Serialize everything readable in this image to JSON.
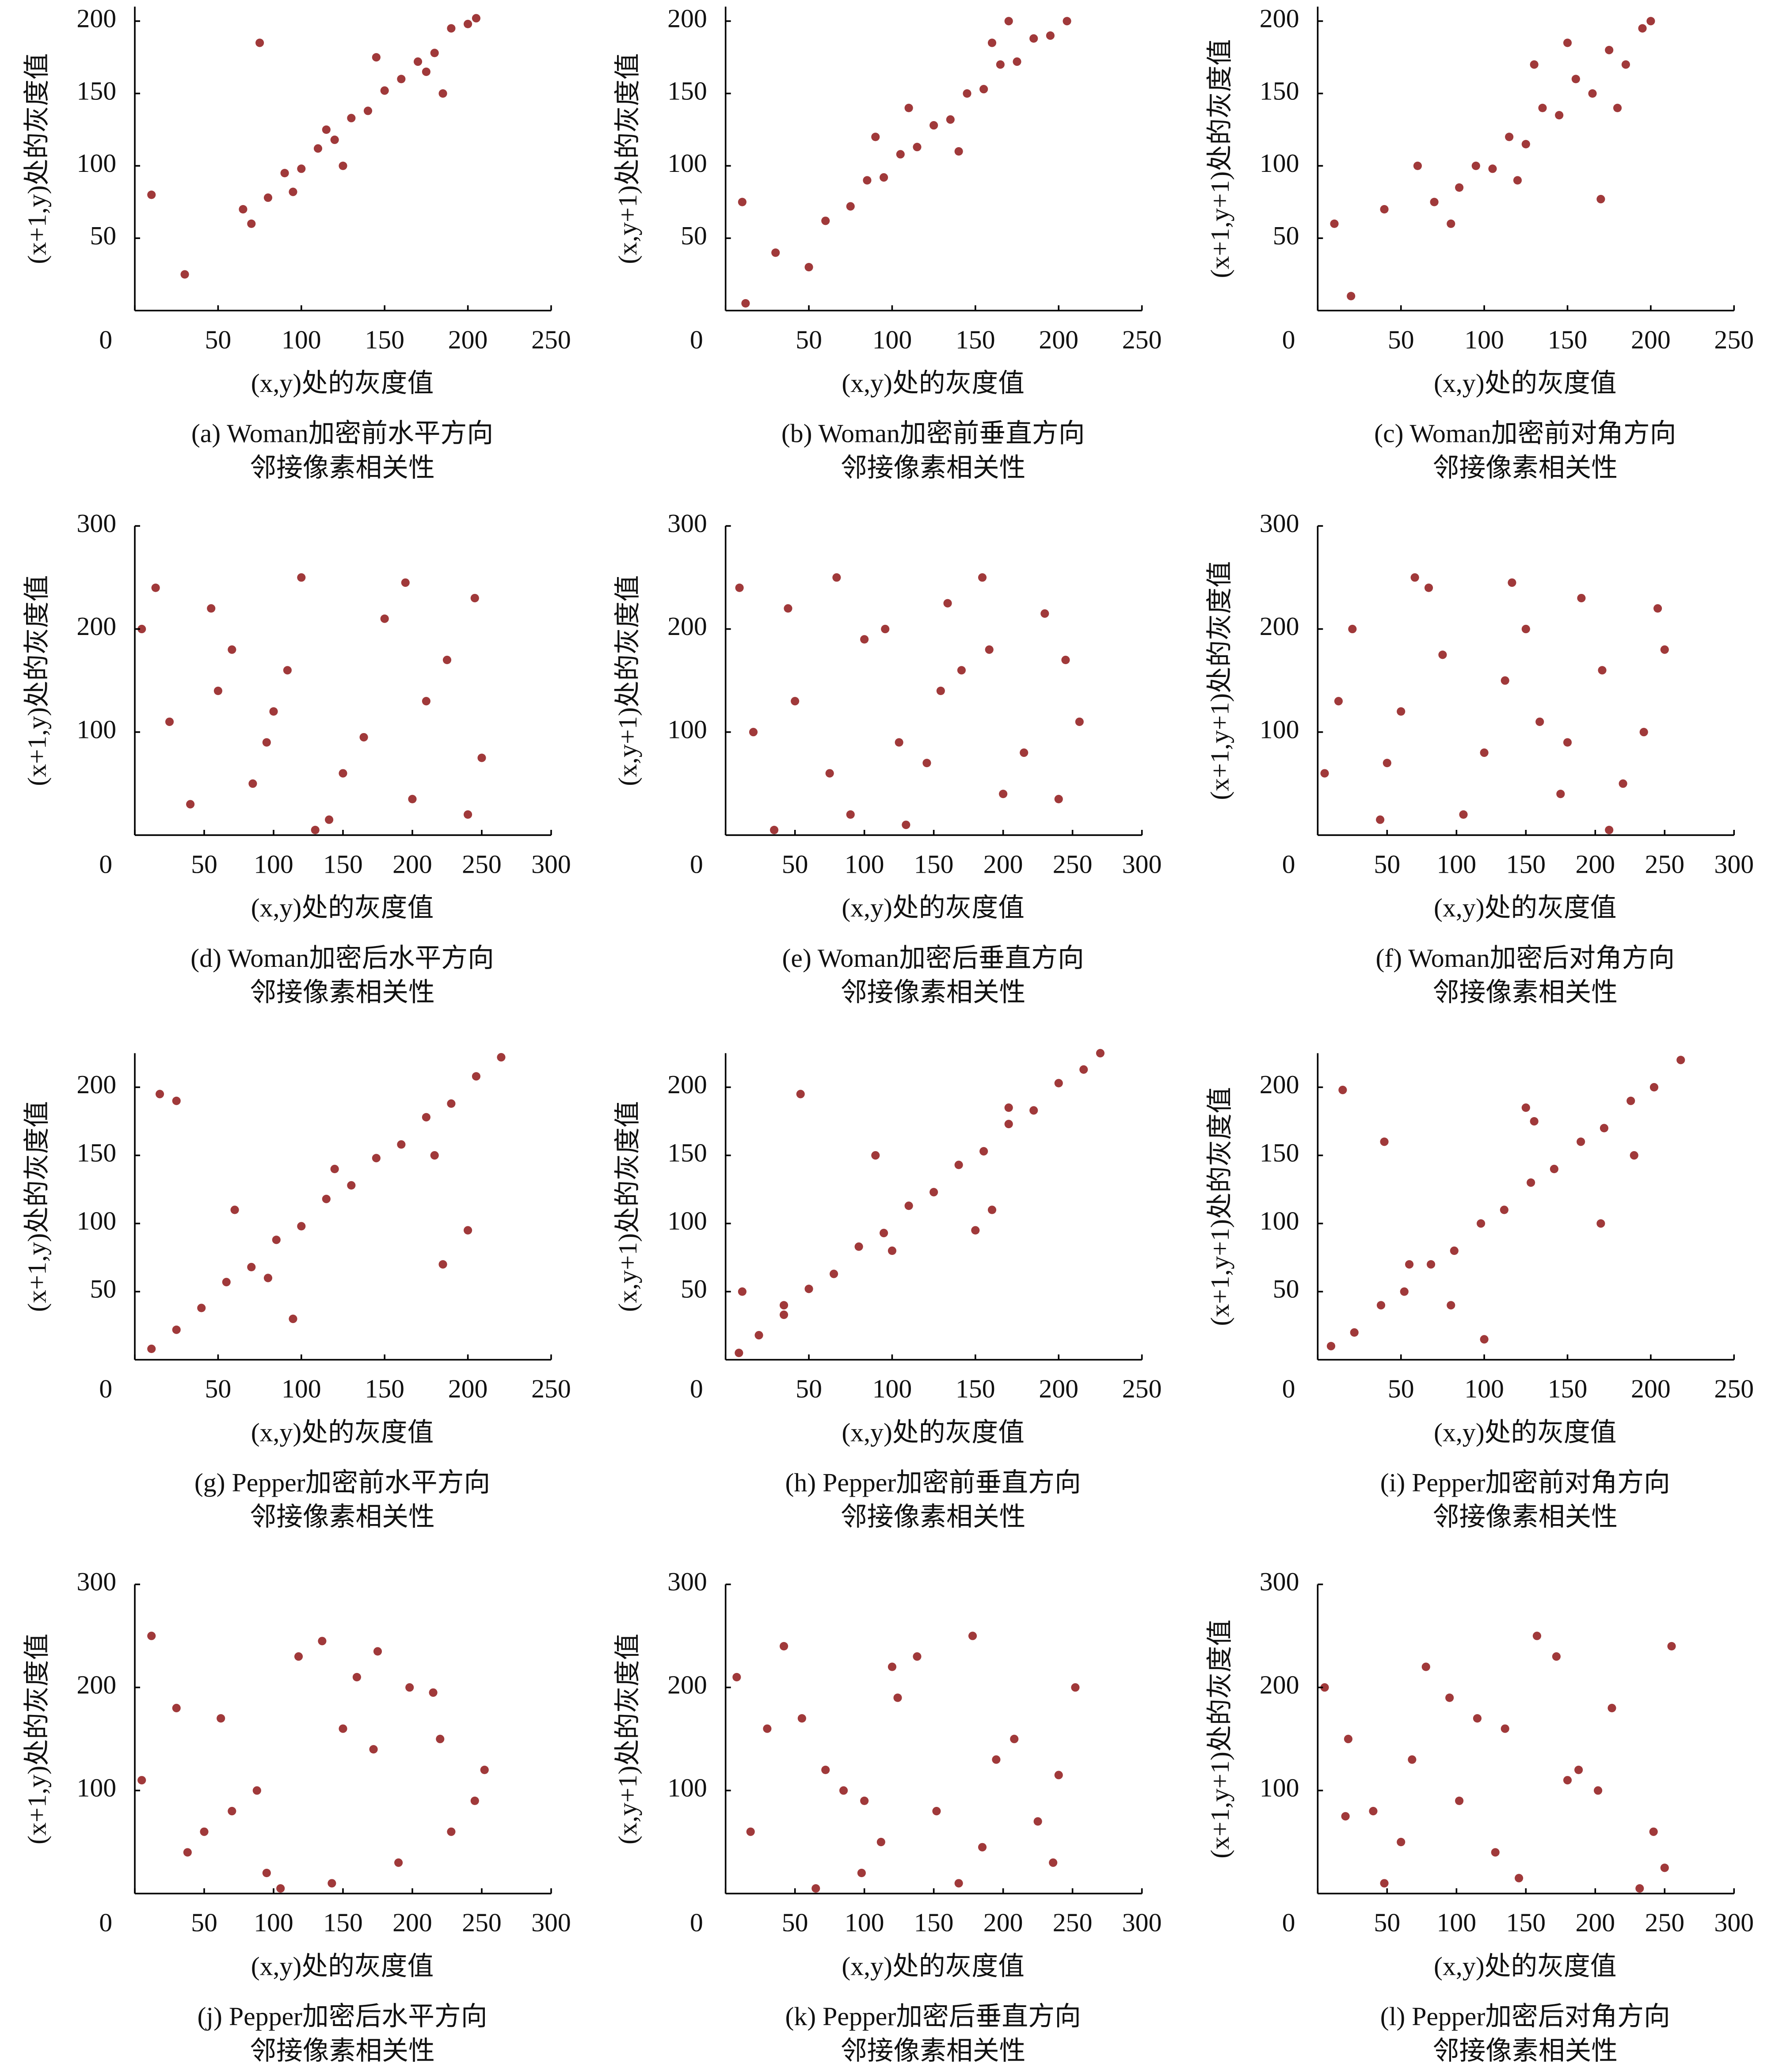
{
  "chart_data": [
    {
      "type": "scatter",
      "xlabel": "(x,y)处的灰度值",
      "ylabel": "(x+1,y)处的灰度值",
      "caption": [
        "(a) Woman加密前水平方向",
        "邻接像素相关性"
      ],
      "color": "#a0393a",
      "xlim": [
        0,
        250
      ],
      "ylim": [
        0,
        210
      ],
      "xticks": [
        0,
        50,
        100,
        150,
        200,
        250
      ],
      "yticks": [
        50,
        100,
        150,
        200
      ],
      "x": [
        65,
        80,
        90,
        100,
        110,
        120,
        130,
        140,
        150,
        160,
        170,
        180,
        190,
        200,
        75,
        95,
        115,
        145,
        175,
        205,
        10,
        30,
        70,
        125,
        185
      ],
      "y": [
        70,
        78,
        95,
        98,
        112,
        118,
        133,
        138,
        152,
        160,
        172,
        178,
        195,
        198,
        185,
        82,
        125,
        175,
        165,
        202,
        80,
        25,
        60,
        100,
        150
      ]
    },
    {
      "type": "scatter",
      "xlabel": "(x,y)处的灰度值",
      "ylabel": "(x,y+1)处的灰度值",
      "caption": [
        "(b) Woman加密前垂直方向",
        "邻接像素相关性"
      ],
      "color": "#a0393a",
      "xlim": [
        0,
        250
      ],
      "ylim": [
        0,
        210
      ],
      "xticks": [
        0,
        50,
        100,
        150,
        200,
        250
      ],
      "yticks": [
        50,
        100,
        150,
        200
      ],
      "x": [
        60,
        75,
        85,
        95,
        105,
        115,
        125,
        135,
        145,
        155,
        165,
        175,
        185,
        195,
        205,
        30,
        50,
        90,
        140,
        170,
        10,
        12,
        110,
        160
      ],
      "y": [
        62,
        72,
        90,
        92,
        108,
        113,
        128,
        132,
        150,
        153,
        170,
        172,
        188,
        190,
        200,
        40,
        30,
        120,
        110,
        200,
        75,
        5,
        140,
        185
      ]
    },
    {
      "type": "scatter",
      "xlabel": "(x,y)处的灰度值",
      "ylabel": "(x+1,y+1)处的灰度值",
      "caption": [
        "(c) Woman加密前对角方向",
        "邻接像素相关性"
      ],
      "color": "#a0393a",
      "xlim": [
        0,
        250
      ],
      "ylim": [
        0,
        210
      ],
      "xticks": [
        0,
        50,
        100,
        150,
        200,
        250
      ],
      "yticks": [
        50,
        100,
        150,
        200
      ],
      "x": [
        70,
        85,
        95,
        105,
        115,
        125,
        135,
        145,
        155,
        165,
        175,
        185,
        195,
        200,
        60,
        80,
        120,
        150,
        180,
        10,
        20,
        40,
        170,
        130
      ],
      "y": [
        75,
        85,
        100,
        98,
        120,
        115,
        140,
        135,
        160,
        150,
        180,
        170,
        195,
        200,
        100,
        60,
        90,
        185,
        140,
        60,
        10,
        70,
        77,
        170
      ]
    },
    {
      "type": "scatter",
      "xlabel": "(x,y)处的灰度值",
      "ylabel": "(x+1,y)处的灰度值",
      "caption": [
        "(d) Woman加密后水平方向",
        "邻接像素相关性"
      ],
      "color": "#a0393a",
      "xlim": [
        0,
        300
      ],
      "ylim": [
        0,
        300
      ],
      "xticks": [
        0,
        50,
        100,
        150,
        200,
        250,
        300
      ],
      "yticks": [
        100,
        200,
        300
      ],
      "x": [
        15,
        40,
        70,
        95,
        120,
        150,
        180,
        210,
        240,
        25,
        55,
        85,
        110,
        140,
        165,
        195,
        225,
        250,
        5,
        60,
        130,
        200,
        245,
        100
      ],
      "y": [
        240,
        30,
        180,
        90,
        250,
        60,
        210,
        130,
        20,
        110,
        220,
        50,
        160,
        15,
        95,
        245,
        170,
        75,
        200,
        140,
        5,
        35,
        230,
        120
      ]
    },
    {
      "type": "scatter",
      "xlabel": "(x,y)处的灰度值",
      "ylabel": "(x,y+1)处的灰度值",
      "caption": [
        "(e) Woman加密后垂直方向",
        "邻接像素相关性"
      ],
      "color": "#a0393a",
      "xlim": [
        0,
        300
      ],
      "ylim": [
        0,
        300
      ],
      "xticks": [
        0,
        50,
        100,
        150,
        200,
        250,
        300
      ],
      "yticks": [
        100,
        200,
        300
      ],
      "x": [
        20,
        45,
        75,
        100,
        130,
        155,
        185,
        215,
        245,
        10,
        50,
        90,
        115,
        145,
        170,
        200,
        230,
        255,
        35,
        80,
        125,
        190,
        240,
        160
      ],
      "y": [
        100,
        220,
        60,
        190,
        10,
        140,
        250,
        80,
        170,
        240,
        130,
        20,
        200,
        70,
        160,
        40,
        215,
        110,
        5,
        250,
        90,
        180,
        35,
        225
      ]
    },
    {
      "type": "scatter",
      "xlabel": "(x,y)处的灰度值",
      "ylabel": "(x+1,y+1)处的灰度值",
      "caption": [
        "(f) Woman加密后对角方向",
        "邻接像素相关性"
      ],
      "color": "#a0393a",
      "xlim": [
        0,
        300
      ],
      "ylim": [
        0,
        300
      ],
      "xticks": [
        0,
        50,
        100,
        150,
        200,
        250,
        300
      ],
      "yticks": [
        100,
        200,
        300
      ],
      "x": [
        25,
        50,
        80,
        105,
        135,
        160,
        190,
        220,
        250,
        15,
        45,
        70,
        120,
        150,
        175,
        205,
        235,
        5,
        90,
        140,
        210,
        245,
        60,
        180
      ],
      "y": [
        200,
        70,
        240,
        20,
        150,
        110,
        230,
        50,
        180,
        130,
        15,
        250,
        80,
        200,
        40,
        160,
        100,
        60,
        175,
        245,
        5,
        220,
        120,
        90
      ]
    },
    {
      "type": "scatter",
      "xlabel": "(x,y)处的灰度值",
      "ylabel": "(x+1,y)处的灰度值",
      "caption": [
        "(g) Pepper加密前水平方向",
        "邻接像素相关性"
      ],
      "color": "#a0393a",
      "xlim": [
        0,
        250
      ],
      "ylim": [
        0,
        225
      ],
      "xticks": [
        0,
        50,
        100,
        150,
        200,
        250
      ],
      "yticks": [
        50,
        100,
        150,
        200
      ],
      "x": [
        10,
        25,
        40,
        55,
        70,
        85,
        100,
        115,
        130,
        145,
        160,
        175,
        190,
        205,
        220,
        15,
        25,
        60,
        95,
        185,
        200,
        120,
        80,
        180
      ],
      "y": [
        8,
        22,
        38,
        57,
        68,
        88,
        98,
        118,
        128,
        148,
        158,
        178,
        188,
        208,
        222,
        195,
        190,
        110,
        30,
        70,
        95,
        140,
        60,
        150
      ]
    },
    {
      "type": "scatter",
      "xlabel": "(x,y)处的灰度值",
      "ylabel": "(x,y+1)处的灰度值",
      "caption": [
        "(h) Pepper加密前垂直方向",
        "邻接像素相关性"
      ],
      "color": "#a0393a",
      "xlim": [
        0,
        250
      ],
      "ylim": [
        0,
        225
      ],
      "xticks": [
        0,
        50,
        100,
        150,
        200,
        250
      ],
      "yticks": [
        50,
        100,
        150,
        200
      ],
      "x": [
        8,
        20,
        35,
        50,
        65,
        80,
        95,
        110,
        125,
        140,
        155,
        170,
        185,
        200,
        215,
        225,
        45,
        90,
        150,
        10,
        170,
        35,
        100,
        160
      ],
      "y": [
        5,
        18,
        33,
        52,
        63,
        83,
        93,
        113,
        123,
        143,
        153,
        173,
        183,
        203,
        213,
        225,
        195,
        150,
        95,
        50,
        185,
        40,
        80,
        110
      ]
    },
    {
      "type": "scatter",
      "xlabel": "(x,y)处的灰度值",
      "ylabel": "(x+1,y+1)处的灰度值",
      "caption": [
        "(i) Pepper加密前对角方向",
        "邻接像素相关性"
      ],
      "color": "#a0393a",
      "xlim": [
        0,
        250
      ],
      "ylim": [
        0,
        225
      ],
      "xticks": [
        0,
        50,
        100,
        150,
        200,
        250
      ],
      "yticks": [
        50,
        100,
        150,
        200
      ],
      "x": [
        8,
        22,
        38,
        52,
        68,
        82,
        98,
        112,
        128,
        142,
        158,
        172,
        188,
        202,
        218,
        15,
        40,
        100,
        130,
        170,
        80,
        190,
        55,
        125
      ],
      "y": [
        10,
        20,
        40,
        50,
        70,
        80,
        100,
        110,
        130,
        140,
        160,
        170,
        190,
        200,
        220,
        198,
        160,
        15,
        175,
        100,
        40,
        150,
        70,
        185
      ]
    },
    {
      "type": "scatter",
      "xlabel": "(x,y)处的灰度值",
      "ylabel": "(x+1,y)处的灰度值",
      "caption": [
        "(j) Pepper加密后水平方向",
        "邻接像素相关性"
      ],
      "color": "#a0393a",
      "xlim": [
        0,
        300
      ],
      "ylim": [
        0,
        300
      ],
      "xticks": [
        0,
        50,
        100,
        150,
        200,
        250,
        300
      ],
      "yticks": [
        100,
        200,
        300
      ],
      "x": [
        12,
        38,
        62,
        88,
        118,
        142,
        172,
        198,
        228,
        252,
        30,
        70,
        105,
        135,
        160,
        190,
        220,
        245,
        5,
        50,
        95,
        175,
        215,
        150
      ],
      "y": [
        250,
        40,
        170,
        100,
        230,
        10,
        140,
        200,
        60,
        120,
        180,
        80,
        5,
        245,
        210,
        30,
        150,
        90,
        110,
        60,
        20,
        235,
        195,
        160
      ]
    },
    {
      "type": "scatter",
      "xlabel": "(x,y)处的灰度值",
      "ylabel": "(x,y+1)处的灰度值",
      "caption": [
        "(k) Pepper加密后垂直方向",
        "邻接像素相关性"
      ],
      "color": "#a0393a",
      "xlim": [
        0,
        300
      ],
      "ylim": [
        0,
        300
      ],
      "xticks": [
        0,
        50,
        100,
        150,
        200,
        250,
        300
      ],
      "yticks": [
        100,
        200,
        300
      ],
      "x": [
        18,
        42,
        72,
        98,
        124,
        152,
        178,
        208,
        236,
        8,
        55,
        85,
        112,
        138,
        168,
        195,
        225,
        252,
        30,
        65,
        120,
        185,
        240,
        100
      ],
      "y": [
        60,
        240,
        120,
        20,
        190,
        80,
        250,
        150,
        30,
        210,
        170,
        100,
        50,
        230,
        10,
        130,
        70,
        200,
        160,
        5,
        220,
        45,
        115,
        90
      ]
    },
    {
      "type": "scatter",
      "xlabel": "(x,y)处的灰度值",
      "ylabel": "(x+1,y+1)处的灰度值",
      "caption": [
        "(l) Pepper加密后对角方向",
        "邻接像素相关性"
      ],
      "color": "#a0393a",
      "xlim": [
        0,
        300
      ],
      "ylim": [
        0,
        300
      ],
      "xticks": [
        0,
        50,
        100,
        150,
        200,
        250,
        300
      ],
      "yticks": [
        100,
        200,
        300
      ],
      "x": [
        22,
        48,
        78,
        102,
        128,
        158,
        188,
        212,
        242,
        5,
        40,
        68,
        115,
        145,
        172,
        202,
        232,
        255,
        60,
        95,
        135,
        180,
        250,
        20
      ],
      "y": [
        150,
        10,
        220,
        90,
        40,
        250,
        120,
        180,
        60,
        200,
        80,
        130,
        170,
        15,
        230,
        100,
        5,
        240,
        50,
        190,
        160,
        110,
        25,
        75
      ]
    }
  ]
}
